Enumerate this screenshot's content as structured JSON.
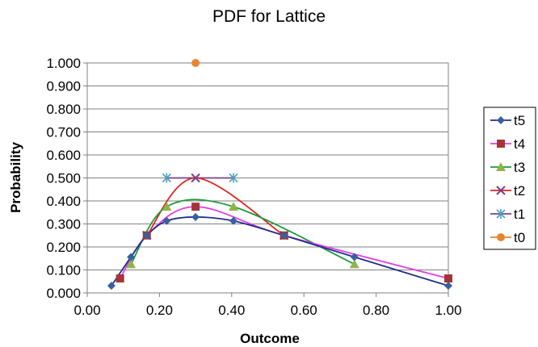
{
  "chart_data": {
    "type": "line",
    "title": "PDF for Lattice",
    "xlabel": "Outcome",
    "ylabel": "Probability",
    "xlim": [
      0.0,
      1.0
    ],
    "ylim": [
      0.0,
      1.0
    ],
    "x_ticks": [
      "0.00",
      "0.20",
      "0.40",
      "0.60",
      "0.80",
      "1.00"
    ],
    "y_ticks": [
      "0.000",
      "0.100",
      "0.200",
      "0.300",
      "0.400",
      "0.500",
      "0.600",
      "0.700",
      "0.800",
      "0.900",
      "1.000"
    ],
    "grid": "horizontal",
    "legend_position": "right",
    "series": [
      {
        "name": "t5",
        "color": "#3a5fa0",
        "marker": "diamond",
        "x": [
          0.067,
          0.121,
          0.165,
          0.22,
          0.3,
          0.405,
          0.545,
          0.74,
          1.0
        ],
        "y": [
          0.031,
          0.156,
          0.25,
          0.313,
          0.33,
          0.313,
          0.25,
          0.156,
          0.031
        ]
      },
      {
        "name": "t4",
        "color": "#a53438",
        "marker": "square",
        "x": [
          0.091,
          0.165,
          0.3,
          0.545,
          1.0
        ],
        "y": [
          0.063,
          0.25,
          0.375,
          0.25,
          0.063
        ]
      },
      {
        "name": "t3",
        "color": "#8fb44b",
        "marker": "triangle",
        "x": [
          0.121,
          0.22,
          0.405,
          0.74
        ],
        "y": [
          0.125,
          0.375,
          0.375,
          0.125
        ]
      },
      {
        "name": "t2",
        "color": "#7a3f8e",
        "marker": "x",
        "x": [
          0.165,
          0.3,
          0.545
        ],
        "y": [
          0.25,
          0.5,
          0.25
        ]
      },
      {
        "name": "t1",
        "color": "#4aa3c4",
        "marker": "star",
        "x": [
          0.22,
          0.405
        ],
        "y": [
          0.5,
          0.5
        ]
      },
      {
        "name": "t0",
        "color": "#e8862e",
        "marker": "circle",
        "x": [
          0.3
        ],
        "y": [
          1.0
        ]
      }
    ],
    "curve_colors": {
      "t5": "#1f2f8a",
      "t4": "#e23ce6",
      "t3": "#1e9a3a",
      "t2": "#e2241f",
      "t1": "#7a3f8e"
    }
  }
}
